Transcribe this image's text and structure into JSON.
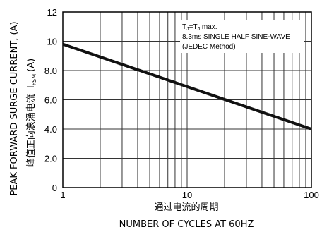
{
  "chart_data": {
    "type": "line",
    "x_scale": "log",
    "xlim": [
      1,
      100
    ],
    "ylim": [
      0,
      12
    ],
    "grid": true,
    "x_ticks": [
      "1",
      "10",
      "100"
    ],
    "y_ticks": [
      "0",
      "2.0",
      "4.0",
      "6.0",
      "8.0",
      "10",
      "12"
    ],
    "xlabel_cn": "通过电流的周期",
    "xlabel_en": "NUMBER OF CYCLES AT 60HZ",
    "ylabel_en_main": "PEAK FORWARD SURGE CURRENT, (A)",
    "ylabel_cn": "峰值正向浪涌电流",
    "ylabel_sym": "I",
    "ylabel_sym_sub": "FSM",
    "ylabel_unit": "(A)",
    "annotation": {
      "line1_a": "T",
      "line1_sub1": "J",
      "line1_b": "=T",
      "line1_sub2": "J",
      "line1_c": " max.",
      "line2": "8.3ms SINGLE HALF SINE-WAVE",
      "line3": "(JEDEC Method)"
    },
    "series": [
      {
        "x": [
          1,
          100
        ],
        "y": [
          9.8,
          4.0
        ],
        "color": "#111111"
      }
    ]
  }
}
